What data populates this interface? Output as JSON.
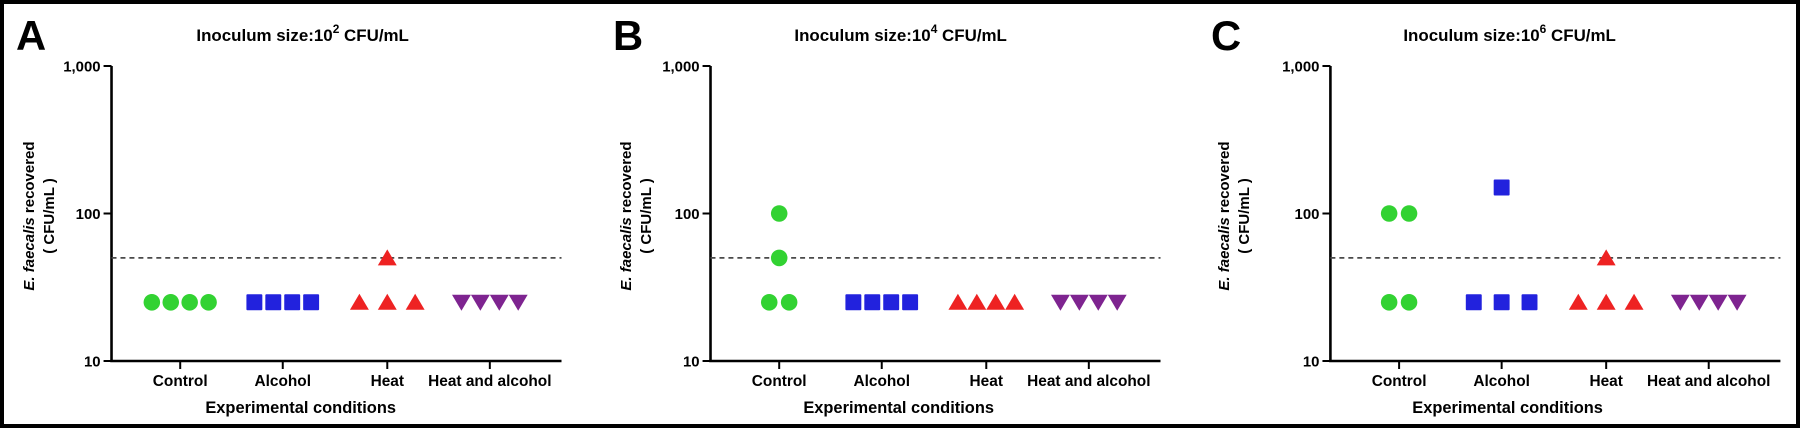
{
  "figure": {
    "background": "#ffffff",
    "border_color": "#000000",
    "axis_color": "#000000",
    "detection_limit_color": "#4a4a4a"
  },
  "shared_axes": {
    "ylabel_full": "E. faecalis recovered ( CFU/mL )",
    "ylabel_italic": "E. faecalis",
    "ylabel_rest": " recovered",
    "ylabel_line2": "( CFU/mL )",
    "xlabel": "Experimental conditions",
    "categories": [
      "Control",
      "Alcohol",
      "Heat",
      "Heat and alcohol"
    ],
    "yticks": [
      {
        "value": 1000,
        "label": "1,000"
      },
      {
        "value": 100,
        "label": "100"
      },
      {
        "value": 10,
        "label": "10"
      }
    ],
    "yscale": "log",
    "ylim": [
      10,
      1000
    ],
    "detection_limit_value": 50
  },
  "chart_data": [
    {
      "type": "scatter",
      "panel_label": "A",
      "title_prefix": "Inoculum size:10",
      "title_exponent": "2",
      "title_suffix": " CFU/mL",
      "series": [
        {
          "condition": "Control",
          "marker": "circle",
          "color": "#32d232",
          "values": [
            25,
            25,
            25,
            25
          ]
        },
        {
          "condition": "Alcohol",
          "marker": "square",
          "color": "#2222dd",
          "values": [
            25,
            25,
            25,
            25
          ]
        },
        {
          "condition": "Heat",
          "marker": "triangle-up",
          "color": "#ee2222",
          "values": [
            25,
            25,
            25,
            50
          ]
        },
        {
          "condition": "Heat and alcohol",
          "marker": "triangle-down",
          "color": "#7e2490",
          "values": [
            25,
            25,
            25,
            25
          ]
        }
      ]
    },
    {
      "type": "scatter",
      "panel_label": "B",
      "title_prefix": "Inoculum size:10",
      "title_exponent": "4",
      "title_suffix": " CFU/mL",
      "series": [
        {
          "condition": "Control",
          "marker": "circle",
          "color": "#32d232",
          "values": [
            100,
            50,
            25,
            25
          ]
        },
        {
          "condition": "Alcohol",
          "marker": "square",
          "color": "#2222dd",
          "values": [
            25,
            25,
            25,
            25
          ]
        },
        {
          "condition": "Heat",
          "marker": "triangle-up",
          "color": "#ee2222",
          "values": [
            25,
            25,
            25,
            25
          ]
        },
        {
          "condition": "Heat and alcohol",
          "marker": "triangle-down",
          "color": "#7e2490",
          "values": [
            25,
            25,
            25,
            25
          ]
        }
      ]
    },
    {
      "type": "scatter",
      "panel_label": "C",
      "title_prefix": "Inoculum size:10",
      "title_exponent": "6",
      "title_suffix": " CFU/mL",
      "series": [
        {
          "condition": "Control",
          "marker": "circle",
          "color": "#32d232",
          "values": [
            100,
            100,
            25,
            25
          ]
        },
        {
          "condition": "Alcohol",
          "marker": "square",
          "color": "#2222dd",
          "values": [
            150,
            25,
            25,
            25
          ]
        },
        {
          "condition": "Heat",
          "marker": "triangle-up",
          "color": "#ee2222",
          "values": [
            50,
            25,
            25,
            25
          ]
        },
        {
          "condition": "Heat and alcohol",
          "marker": "triangle-down",
          "color": "#7e2490",
          "values": [
            25,
            25,
            25,
            25
          ]
        }
      ]
    }
  ]
}
